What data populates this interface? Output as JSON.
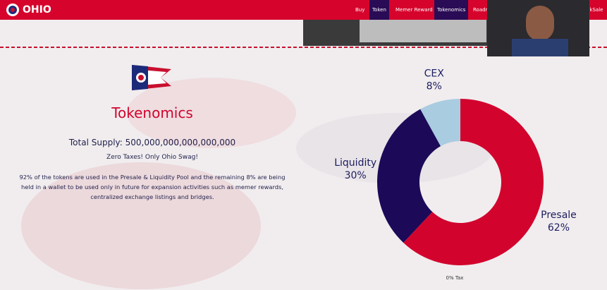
{
  "header": {
    "logo_text": "OHIO",
    "nav": [
      "Buy",
      "Token",
      "Memer Reward",
      "Tokenomics",
      "Roadm",
      "nkSale"
    ]
  },
  "tokenomics": {
    "title": "Tokenomics",
    "total_supply": "Total Supply: 500,000,000,000,000,000",
    "tagline": "Zero Taxes! Only Ohio Swag!",
    "description": "92% of the tokens are used in the Presale & Liquidity Pool and the remaining 8% are being held in a wallet to be used only in future for expansion activities such as memer rewards, centralized exchange listings and bridges."
  },
  "chart_data": {
    "type": "donut",
    "categories": [
      "Presale",
      "Liquidity",
      "CEX"
    ],
    "values": [
      62,
      30,
      8
    ],
    "value_labels": [
      "62%",
      "30%",
      "8%"
    ],
    "colors": [
      "#d2042d",
      "#1c0a58",
      "#a9cce0"
    ],
    "footnote": "0% Tax"
  }
}
